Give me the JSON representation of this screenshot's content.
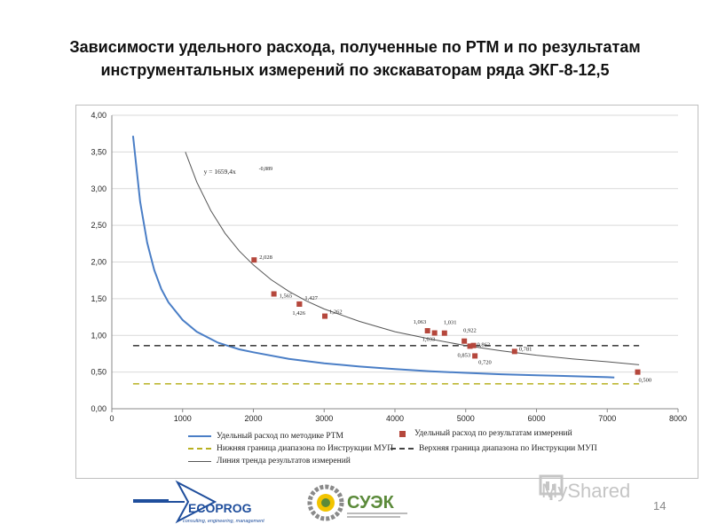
{
  "title_line1": "Зависимости удельного расхода, полученные по РТМ и по результатам",
  "title_line2": "инструментальных измерений по экскаваторам ряда ЭКГ-8-12,5",
  "chart_data": {
    "type": "scatter",
    "xlim": [
      0,
      8000
    ],
    "ylim": [
      0,
      4
    ],
    "x_ticks": [
      0,
      1000,
      2000,
      3000,
      4000,
      5000,
      6000,
      7000,
      8000
    ],
    "x_tick_labels": [
      "0",
      "1000",
      "2000",
      "3000",
      "4000",
      "5000",
      "6000",
      "7000",
      "8000"
    ],
    "y_ticks": [
      0,
      0.5,
      1,
      1.5,
      2,
      2.5,
      3,
      3.5,
      4
    ],
    "y_tick_labels": [
      "0,00",
      "0,50",
      "1,00",
      "1,50",
      "2,00",
      "2,50",
      "3,00",
      "3,50",
      "4,00"
    ],
    "grid": "horizontal",
    "trend_equation": "y = 1659,4x",
    "trend_exponent": "-0,889",
    "series": [
      {
        "name": "Удельный расход по методике РТМ",
        "type": "line",
        "color": "#4a7ec6",
        "x": [
          300,
          400,
          500,
          600,
          700,
          800,
          1000,
          1200,
          1500,
          1800,
          2000,
          2500,
          3000,
          3500,
          4000,
          4500,
          5000,
          5500,
          6000,
          6500,
          7000,
          7100
        ],
        "y": [
          3.72,
          2.82,
          2.26,
          1.89,
          1.63,
          1.45,
          1.21,
          1.05,
          0.9,
          0.81,
          0.77,
          0.68,
          0.62,
          0.575,
          0.54,
          0.51,
          0.49,
          0.47,
          0.455,
          0.445,
          0.43,
          0.425
        ]
      },
      {
        "name": "Удельный расход по результатам измерений",
        "type": "scatter",
        "color": "#b5473c",
        "points": [
          {
            "x": 2010,
            "y": 2.028,
            "label": "2,028"
          },
          {
            "x": 2290,
            "y": 1.565,
            "label": "1,565"
          },
          {
            "x": 2650,
            "y": 1.426,
            "label": "1,426"
          },
          {
            "x": 2650,
            "y": 1.427,
            "label": "1,427"
          },
          {
            "x": 3010,
            "y": 1.262,
            "label": "1,262"
          },
          {
            "x": 4460,
            "y": 1.063,
            "label": "1,063"
          },
          {
            "x": 4560,
            "y": 1.033,
            "label": "1,033"
          },
          {
            "x": 4700,
            "y": 1.031,
            "label": "1,031"
          },
          {
            "x": 4980,
            "y": 0.922,
            "label": "0,922"
          },
          {
            "x": 5060,
            "y": 0.853,
            "label": "0,853"
          },
          {
            "x": 5110,
            "y": 0.862,
            "label": "0,862"
          },
          {
            "x": 5130,
            "y": 0.72,
            "label": "0,720"
          },
          {
            "x": 5690,
            "y": 0.781,
            "label": "0,781"
          },
          {
            "x": 7430,
            "y": 0.5,
            "label": "0,500"
          }
        ]
      },
      {
        "name": "Нижняя граница диапазона по Инструкции МУП",
        "type": "hline",
        "color": "#b8b020",
        "y": 0.34,
        "x_range": [
          300,
          7450
        ]
      },
      {
        "name": "Верхняя граница диапазона по Инструкции МУП",
        "type": "hline",
        "color": "#444444",
        "y": 0.86,
        "x_range": [
          300,
          7450
        ]
      },
      {
        "name": "Линия тренда результатов измерений",
        "type": "line",
        "color": "#555555",
        "x": [
          1040,
          1200,
          1400,
          1600,
          1800,
          2000,
          2250,
          2500,
          2750,
          3000,
          3500,
          4000,
          4500,
          5000,
          5500,
          6000,
          6500,
          7000,
          7450
        ],
        "y": [
          3.5,
          3.09,
          2.7,
          2.39,
          2.15,
          1.96,
          1.76,
          1.6,
          1.47,
          1.36,
          1.19,
          1.05,
          0.95,
          0.86,
          0.79,
          0.73,
          0.68,
          0.64,
          0.6
        ]
      }
    ],
    "legend_position": "bottom"
  },
  "legend": {
    "rtm": "Удельный расход по методике РТМ",
    "measured": "Удельный расход по результатам измерений",
    "lower": "Нижняя граница диапазона по Инструкции МУП",
    "upper": "Верхняя граница диапазона по Инструкции МУП",
    "trend": "Линия тренда результатов измерений"
  },
  "logos": {
    "ecoprog_name": "ECOPROG",
    "ecoprog_tagline": "consulting, engineering, management",
    "suek_name": "СУЭК",
    "myshared": "MyShared"
  },
  "page_number": "14",
  "colors": {
    "rtm": "#4a7ec6",
    "measured": "#b5473c",
    "lower": "#b8b020",
    "upper": "#444444",
    "trend": "#555555",
    "ecoprog_blue": "#1f4e9c",
    "suek_green": "#5b8a3a"
  }
}
